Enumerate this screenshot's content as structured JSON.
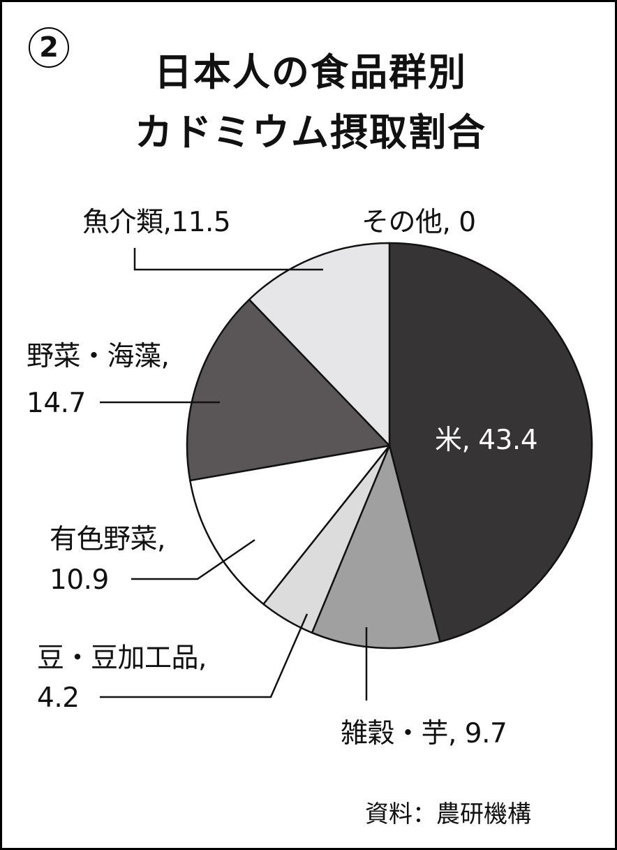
{
  "badge": "2",
  "chart_data": {
    "type": "pie",
    "title": [
      "日本人の食品群別",
      "カドミウム摂取割合"
    ],
    "start_angle": "12 o'clock, clockwise",
    "slices": [
      {
        "label": "米",
        "value": 43.4,
        "display": "米, 43.4",
        "color": "#363434"
      },
      {
        "label": "雑穀・芋",
        "value": 9.7,
        "display": "雑穀・芋, 9.7",
        "color": "#a0a0a0"
      },
      {
        "label": "豆・豆加工品",
        "value": 4.2,
        "display": [
          "豆・豆加工品,",
          "4.2"
        ],
        "color": "#dcdcdc"
      },
      {
        "label": "有色野菜",
        "value": 10.9,
        "display": [
          "有色野菜,",
          "10.9"
        ],
        "color": "#ffffff"
      },
      {
        "label": "野菜・海藻",
        "value": 14.7,
        "display": [
          "野菜・海藻,",
          "14.7"
        ],
        "color": "#5a5658"
      },
      {
        "label": "魚介類",
        "value": 11.5,
        "display": "魚介類,11.5",
        "color": "#e6e6e9"
      },
      {
        "label": "その他",
        "value": 0,
        "display": "その他, 0",
        "color": "#ffffff"
      }
    ],
    "source": "資料：農研機構"
  }
}
